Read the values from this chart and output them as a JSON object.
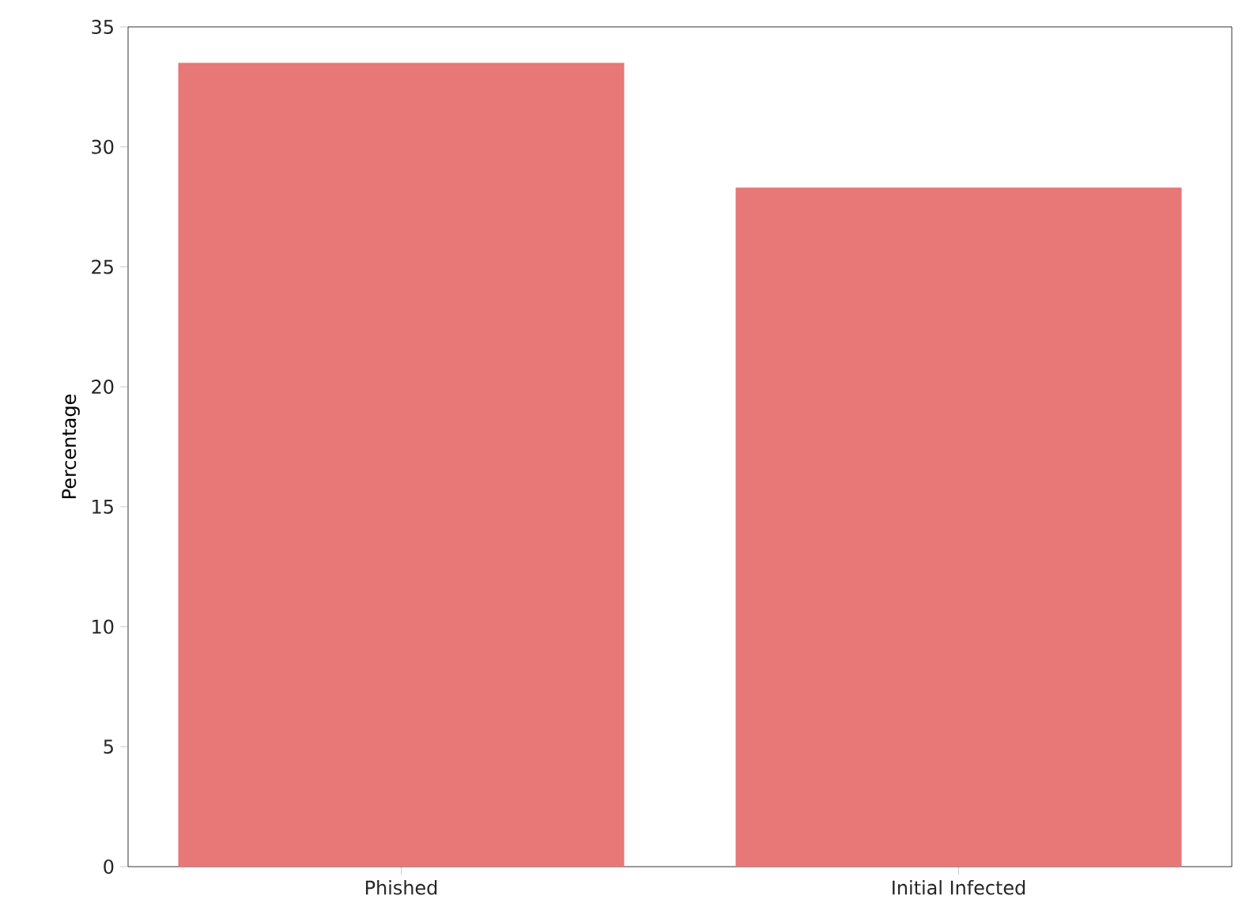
{
  "chart_data": {
    "type": "bar",
    "ylabel": "Percentage",
    "categories": [
      "Phished",
      "Initial Infected"
    ],
    "values": [
      33.5,
      28.3
    ],
    "color": "#e87777",
    "ylim": [
      0,
      35
    ],
    "yticks": [
      0,
      5,
      10,
      15,
      20,
      25,
      30,
      35
    ],
    "grid": false
  }
}
